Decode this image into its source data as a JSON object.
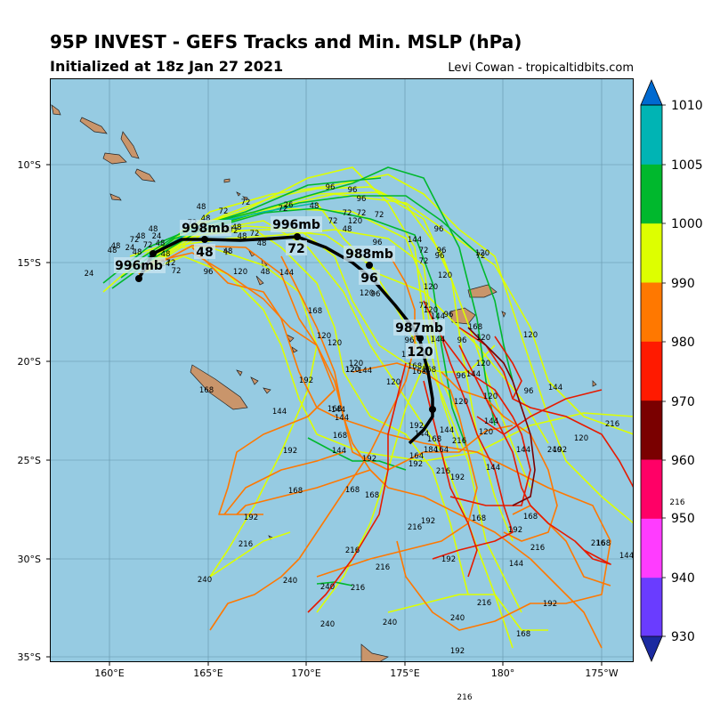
{
  "header": {
    "title": "95P INVEST - GEFS Tracks and Min. MSLP (hPa)",
    "subtitle": "Initialized at 18z Jan 27 2021",
    "credit": "Levi Cowan - tropicaltidbits.com"
  },
  "map": {
    "lon_labels": [
      "160°E",
      "165°E",
      "170°E",
      "175°E",
      "180°",
      "175°W"
    ],
    "lat_labels": [
      "10°S",
      "15°S",
      "20°S",
      "25°S",
      "30°S",
      "35°S"
    ]
  },
  "mean_track": {
    "pressure_labels": [
      "996mb",
      "998mb",
      "996mb",
      "988mb",
      "987mb"
    ],
    "hour_labels": [
      "48",
      "72",
      "96",
      "120"
    ]
  },
  "colorbar": {
    "ticks": [
      "1010",
      "1005",
      "1000",
      "990",
      "980",
      "970",
      "960",
      "950",
      "940",
      "930"
    ],
    "colors": [
      "#1b2aa0",
      "#6a3cff",
      "#ff3cff",
      "#ff0066",
      "#7a0000",
      "#ff1a00",
      "#ff7800",
      "#ddff00",
      "#00b82d",
      "#00b4b4",
      "#006ad0"
    ]
  },
  "stray_labels": [
    "216",
    "216"
  ]
}
